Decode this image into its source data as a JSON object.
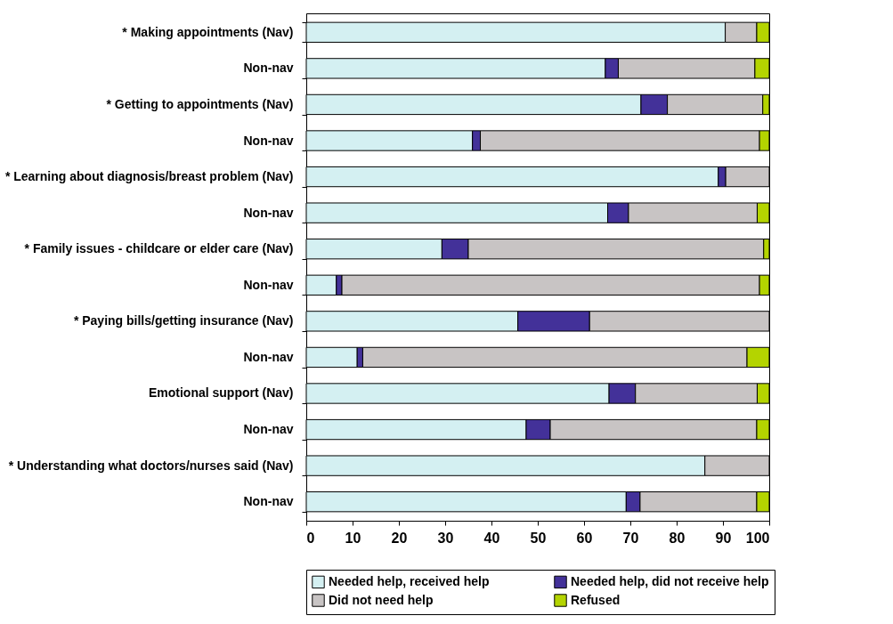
{
  "chart_data": {
    "type": "bar",
    "orientation": "horizontal",
    "stacked": true,
    "categories": [
      "* Making appointments (Nav)",
      "Non-nav",
      "* Getting to appointments (Nav)",
      "Non-nav",
      "* Learning about diagnosis/breast problem (Nav)",
      "Non-nav",
      "* Family issues - childcare or elder care (Nav)",
      "Non-nav",
      "* Paying bills/getting insurance (Nav)",
      "Non-nav",
      "Emotional support (Nav)",
      "Non-nav",
      "* Understanding what doctors/nurses said (Nav)",
      "Non-nav"
    ],
    "series": [
      {
        "name": "Needed help, received help",
        "color": "#d4f0f2",
        "values": [
          90.5,
          64.6,
          72.3,
          35.9,
          89.0,
          65.1,
          29.3,
          6.5,
          45.7,
          11.0,
          65.4,
          47.5,
          86.1,
          69.1
        ]
      },
      {
        "name": "Needed help, did not receive help",
        "color": "#433199",
        "values": [
          null,
          2.8,
          5.7,
          1.7,
          1.6,
          4.5,
          5.7,
          1.2,
          15.5,
          1.2,
          5.7,
          5.2,
          null,
          3.0
        ]
      },
      {
        "name": "Did not need help",
        "color": "#c8c4c4",
        "values": [
          6.8,
          29.5,
          20.6,
          60.3,
          9.4,
          27.8,
          63.8,
          90.2,
          38.8,
          83.0,
          26.3,
          44.6,
          13.9,
          25.2
        ]
      },
      {
        "name": "Refused",
        "color": "#b4d400",
        "values": [
          2.7,
          3.1,
          1.4,
          2.1,
          null,
          2.6,
          1.2,
          2.1,
          null,
          4.8,
          2.6,
          2.7,
          null,
          2.7
        ]
      }
    ],
    "xlim": [
      0,
      100
    ],
    "xticks": [
      0,
      10,
      20,
      30,
      40,
      50,
      60,
      70,
      80,
      90,
      100
    ],
    "grid": false,
    "legend": "bottom"
  }
}
